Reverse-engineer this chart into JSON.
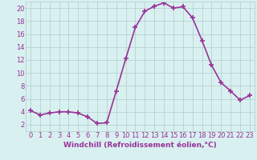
{
  "x": [
    0,
    1,
    2,
    3,
    4,
    5,
    6,
    7,
    8,
    9,
    10,
    11,
    12,
    13,
    14,
    15,
    16,
    17,
    18,
    19,
    20,
    21,
    22,
    23
  ],
  "y": [
    4.2,
    3.5,
    3.8,
    4.0,
    4.0,
    3.8,
    3.2,
    2.2,
    2.3,
    7.2,
    12.2,
    17.0,
    19.5,
    20.3,
    20.8,
    20.0,
    20.2,
    18.5,
    15.0,
    11.2,
    8.5,
    7.2,
    5.8,
    6.5
  ],
  "line_color": "#993399",
  "marker": "+",
  "marker_size": 4,
  "bg_color": "#d9f0f0",
  "grid_color": "#b0cccc",
  "xlabel": "Windchill (Refroidissement éolien,°C)",
  "xlim": [
    -0.5,
    23.5
  ],
  "ylim": [
    1,
    21
  ],
  "yticks": [
    2,
    4,
    6,
    8,
    10,
    12,
    14,
    16,
    18,
    20
  ],
  "xticks": [
    0,
    1,
    2,
    3,
    4,
    5,
    6,
    7,
    8,
    9,
    10,
    11,
    12,
    13,
    14,
    15,
    16,
    17,
    18,
    19,
    20,
    21,
    22,
    23
  ],
  "xlabel_fontsize": 6.5,
  "tick_fontsize": 6,
  "linewidth": 1.2,
  "marker_linewidth": 1.2
}
